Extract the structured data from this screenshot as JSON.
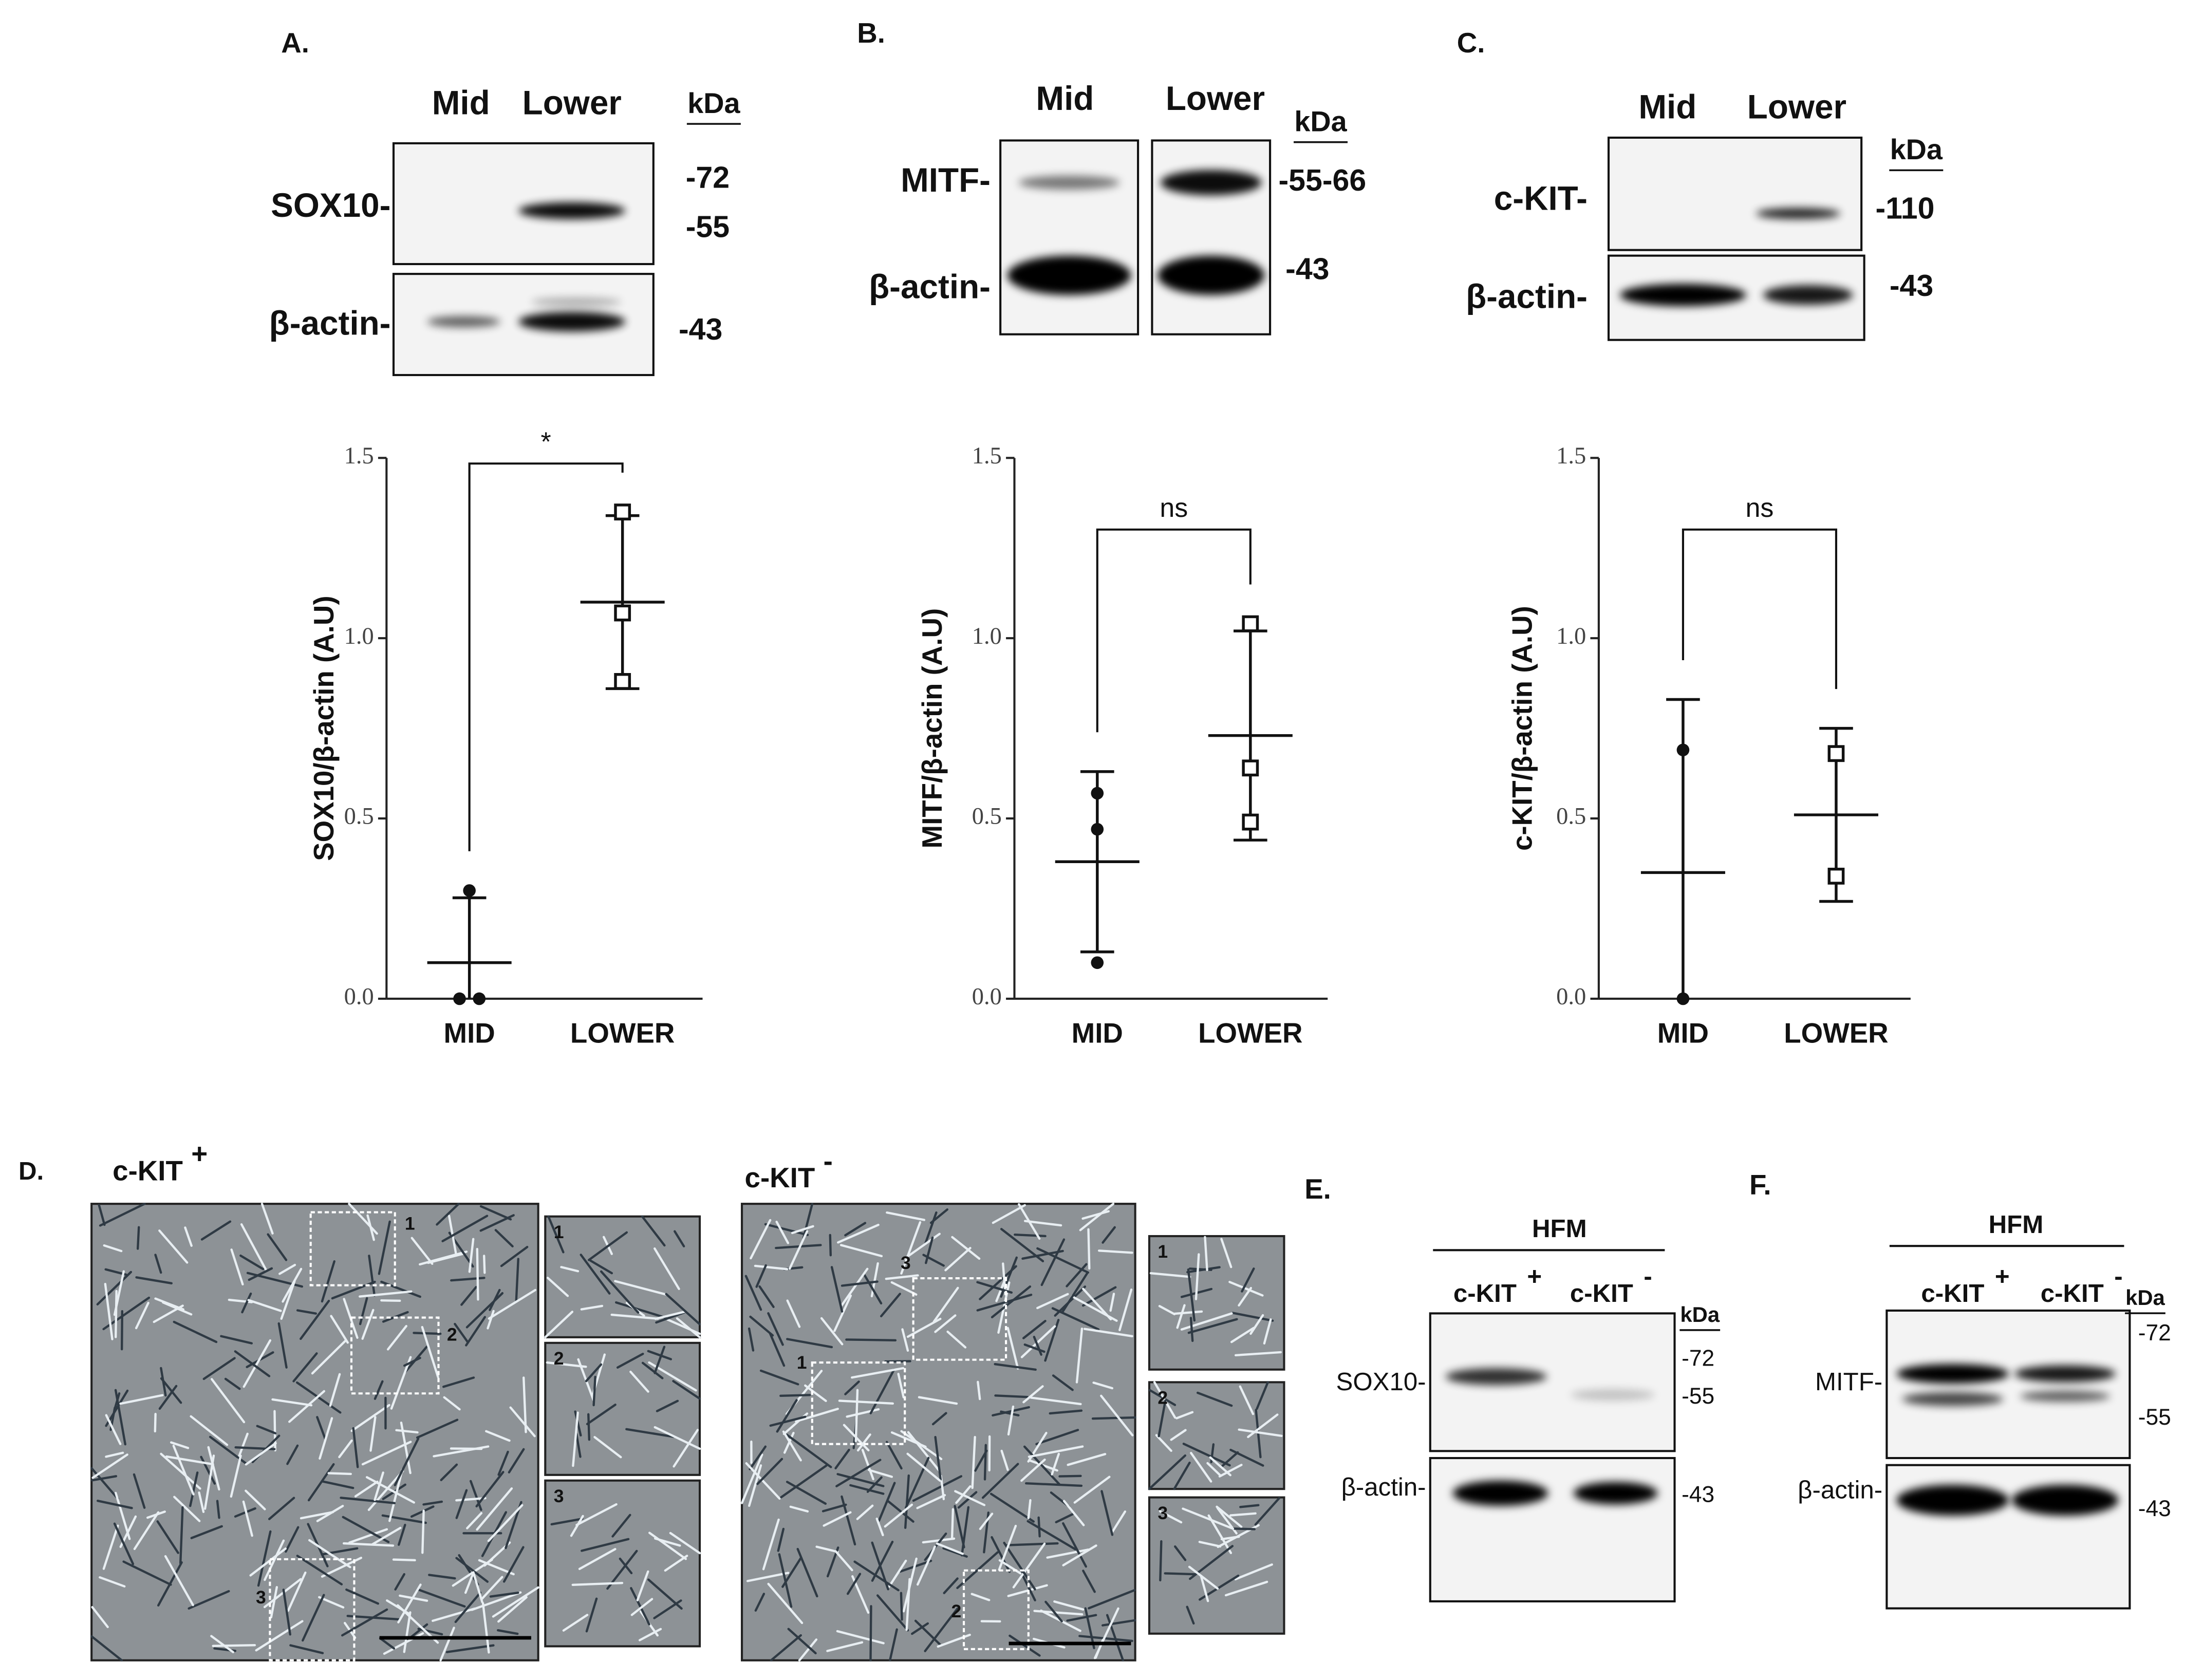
{
  "chart_data": [
    {
      "type": "scatter",
      "ylabel": "SOX10/β-actin (A.U)",
      "categories": [
        "MID",
        "LOWER"
      ],
      "markers": [
        "circle",
        "square"
      ],
      "groups": [
        {
          "points": [
            0.3,
            0.0,
            0.0
          ],
          "mean": 0.1,
          "sd": 0.18
        },
        {
          "points": [
            1.35,
            1.07,
            0.88
          ],
          "mean": 1.1,
          "sd": 0.24
        }
      ],
      "ylim": [
        0,
        1.5
      ],
      "yticks": [
        {
          "value": 0,
          "label": "0.0"
        },
        {
          "value": 0.5,
          "label": "0.5"
        },
        {
          "value": 1,
          "label": "1.0"
        },
        {
          "value": 1.5,
          "label": "1.5"
        }
      ],
      "annotation": "*"
    },
    {
      "type": "scatter",
      "ylabel": "MITF/β-actin (A.U)",
      "categories": [
        "MID",
        "LOWER"
      ],
      "markers": [
        "circle",
        "square"
      ],
      "groups": [
        {
          "points": [
            0.57,
            0.47,
            0.1
          ],
          "mean": 0.38,
          "sd": 0.25
        },
        {
          "points": [
            1.04,
            0.64,
            0.49
          ],
          "mean": 0.73,
          "sd": 0.29
        }
      ],
      "ylim": [
        0,
        1.5
      ],
      "yticks": [
        {
          "value": 0,
          "label": "0.0"
        },
        {
          "value": 0.5,
          "label": "0.5"
        },
        {
          "value": 1,
          "label": "1.0"
        },
        {
          "value": 1.5,
          "label": "1.5"
        }
      ],
      "annotation": "ns"
    },
    {
      "type": "scatter",
      "ylabel": "c-KIT/β-actin (A.U)",
      "categories": [
        "MID",
        "LOWER"
      ],
      "markers": [
        "circle",
        "square"
      ],
      "groups": [
        {
          "points": [
            0.69,
            0.0
          ],
          "mean": 0.35,
          "sd": 0.48
        },
        {
          "points": [
            0.68,
            0.34
          ],
          "mean": 0.51,
          "sd": 0.24
        }
      ],
      "ylim": [
        0,
        1.5
      ],
      "yticks": [
        {
          "value": 0,
          "label": "0.0"
        },
        {
          "value": 0.5,
          "label": "0.5"
        },
        {
          "value": 1,
          "label": "1.0"
        },
        {
          "value": 1.5,
          "label": "1.5"
        }
      ],
      "annotation": "ns"
    }
  ],
  "blots": [
    {
      "label": "A.",
      "lanes": [
        "Mid",
        "Lower"
      ],
      "unit": "kDa",
      "rows": [
        {
          "protein": "SOX10-",
          "sizes": [
            "-72",
            "-55"
          ]
        },
        {
          "protein": "β-actin-",
          "sizes": [
            "-43"
          ]
        }
      ]
    },
    {
      "label": "B.",
      "lanes": [
        "Mid",
        "Lower"
      ],
      "unit": "kDa",
      "rows": [
        {
          "protein": "MITF-",
          "sizes": [
            "-55-66"
          ]
        },
        {
          "protein": "β-actin-",
          "sizes": [
            "-43"
          ]
        }
      ]
    },
    {
      "label": "C.",
      "lanes": [
        "Mid",
        "Lower"
      ],
      "unit": "kDa",
      "rows": [
        {
          "protein": "c-KIT-",
          "sizes": [
            "-110"
          ]
        },
        {
          "protein": "β-actin-",
          "sizes": [
            "-43"
          ]
        }
      ]
    },
    {
      "label": "E.",
      "group": "HFM",
      "lanes": [
        "c-KIT",
        "c-KIT"
      ],
      "lane_signs": [
        "+",
        "-"
      ],
      "unit": "kDa",
      "rows": [
        {
          "protein": "SOX10-",
          "sizes": [
            "-72",
            "-55"
          ]
        },
        {
          "protein": "β-actin-",
          "sizes": [
            "-43"
          ]
        }
      ]
    },
    {
      "label": "F.",
      "group": "HFM",
      "lanes": [
        "c-KIT",
        "c-KIT"
      ],
      "lane_signs": [
        "+",
        "-"
      ],
      "unit": "kDa",
      "rows": [
        {
          "protein": "MITF-",
          "sizes": [
            "-72",
            "-55"
          ]
        },
        {
          "protein": "β-actin-",
          "sizes": [
            "-43"
          ]
        }
      ]
    }
  ],
  "micrographs": {
    "label": "D.",
    "panels": [
      {
        "title": "c-KIT",
        "sign": "+",
        "insets": [
          "1",
          "2",
          "3"
        ]
      },
      {
        "title": "c-KIT",
        "sign": "-",
        "insets": [
          "1",
          "2",
          "3"
        ]
      }
    ]
  }
}
